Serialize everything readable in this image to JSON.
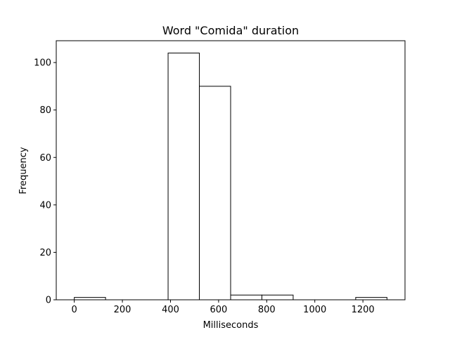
{
  "chart_data": {
    "type": "bar",
    "title": "Word \"Comida\" duration",
    "xlabel": "Milliseconds",
    "ylabel": "Frequency",
    "xlim": [
      -75,
      1375
    ],
    "ylim": [
      0,
      109.2
    ],
    "xticks": [
      0,
      200,
      400,
      600,
      800,
      1000,
      1200
    ],
    "yticks": [
      0,
      20,
      40,
      60,
      80,
      100
    ],
    "grid": false,
    "legend": "none",
    "bar_fill": "#ffffff",
    "bar_edge": "#000000",
    "bins": [
      {
        "start": 0,
        "end": 130,
        "count": 1
      },
      {
        "start": 130,
        "end": 260,
        "count": 0
      },
      {
        "start": 260,
        "end": 390,
        "count": 0
      },
      {
        "start": 390,
        "end": 520,
        "count": 104
      },
      {
        "start": 520,
        "end": 650,
        "count": 90
      },
      {
        "start": 650,
        "end": 780,
        "count": 2
      },
      {
        "start": 780,
        "end": 910,
        "count": 2
      },
      {
        "start": 910,
        "end": 1040,
        "count": 0
      },
      {
        "start": 1040,
        "end": 1170,
        "count": 0
      },
      {
        "start": 1170,
        "end": 1300,
        "count": 1
      }
    ]
  }
}
